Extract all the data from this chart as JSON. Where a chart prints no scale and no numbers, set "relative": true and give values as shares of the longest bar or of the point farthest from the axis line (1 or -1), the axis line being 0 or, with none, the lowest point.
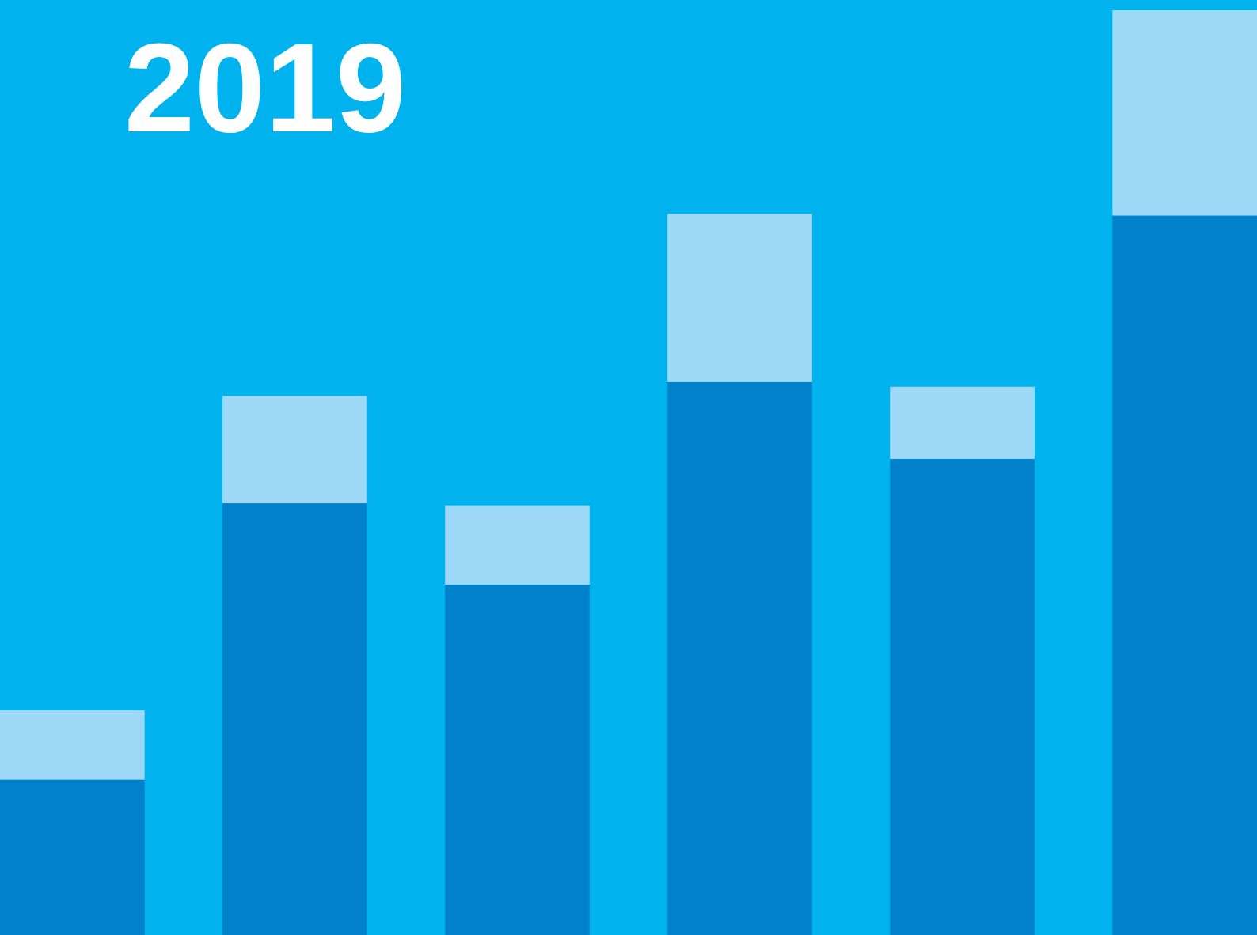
{
  "chart_data": {
    "type": "bar",
    "title": "2019",
    "relative": true,
    "stacked": true,
    "categories": [
      null,
      null,
      null,
      null,
      null,
      null
    ],
    "series": [
      {
        "color": "#0081c9",
        "values": [
          0.168,
          0.467,
          0.379,
          0.598,
          0.515,
          0.778
        ]
      },
      {
        "color": "#9dd8f7",
        "values": [
          0.075,
          0.116,
          0.085,
          0.182,
          0.078,
          0.222
        ]
      }
    ]
  }
}
